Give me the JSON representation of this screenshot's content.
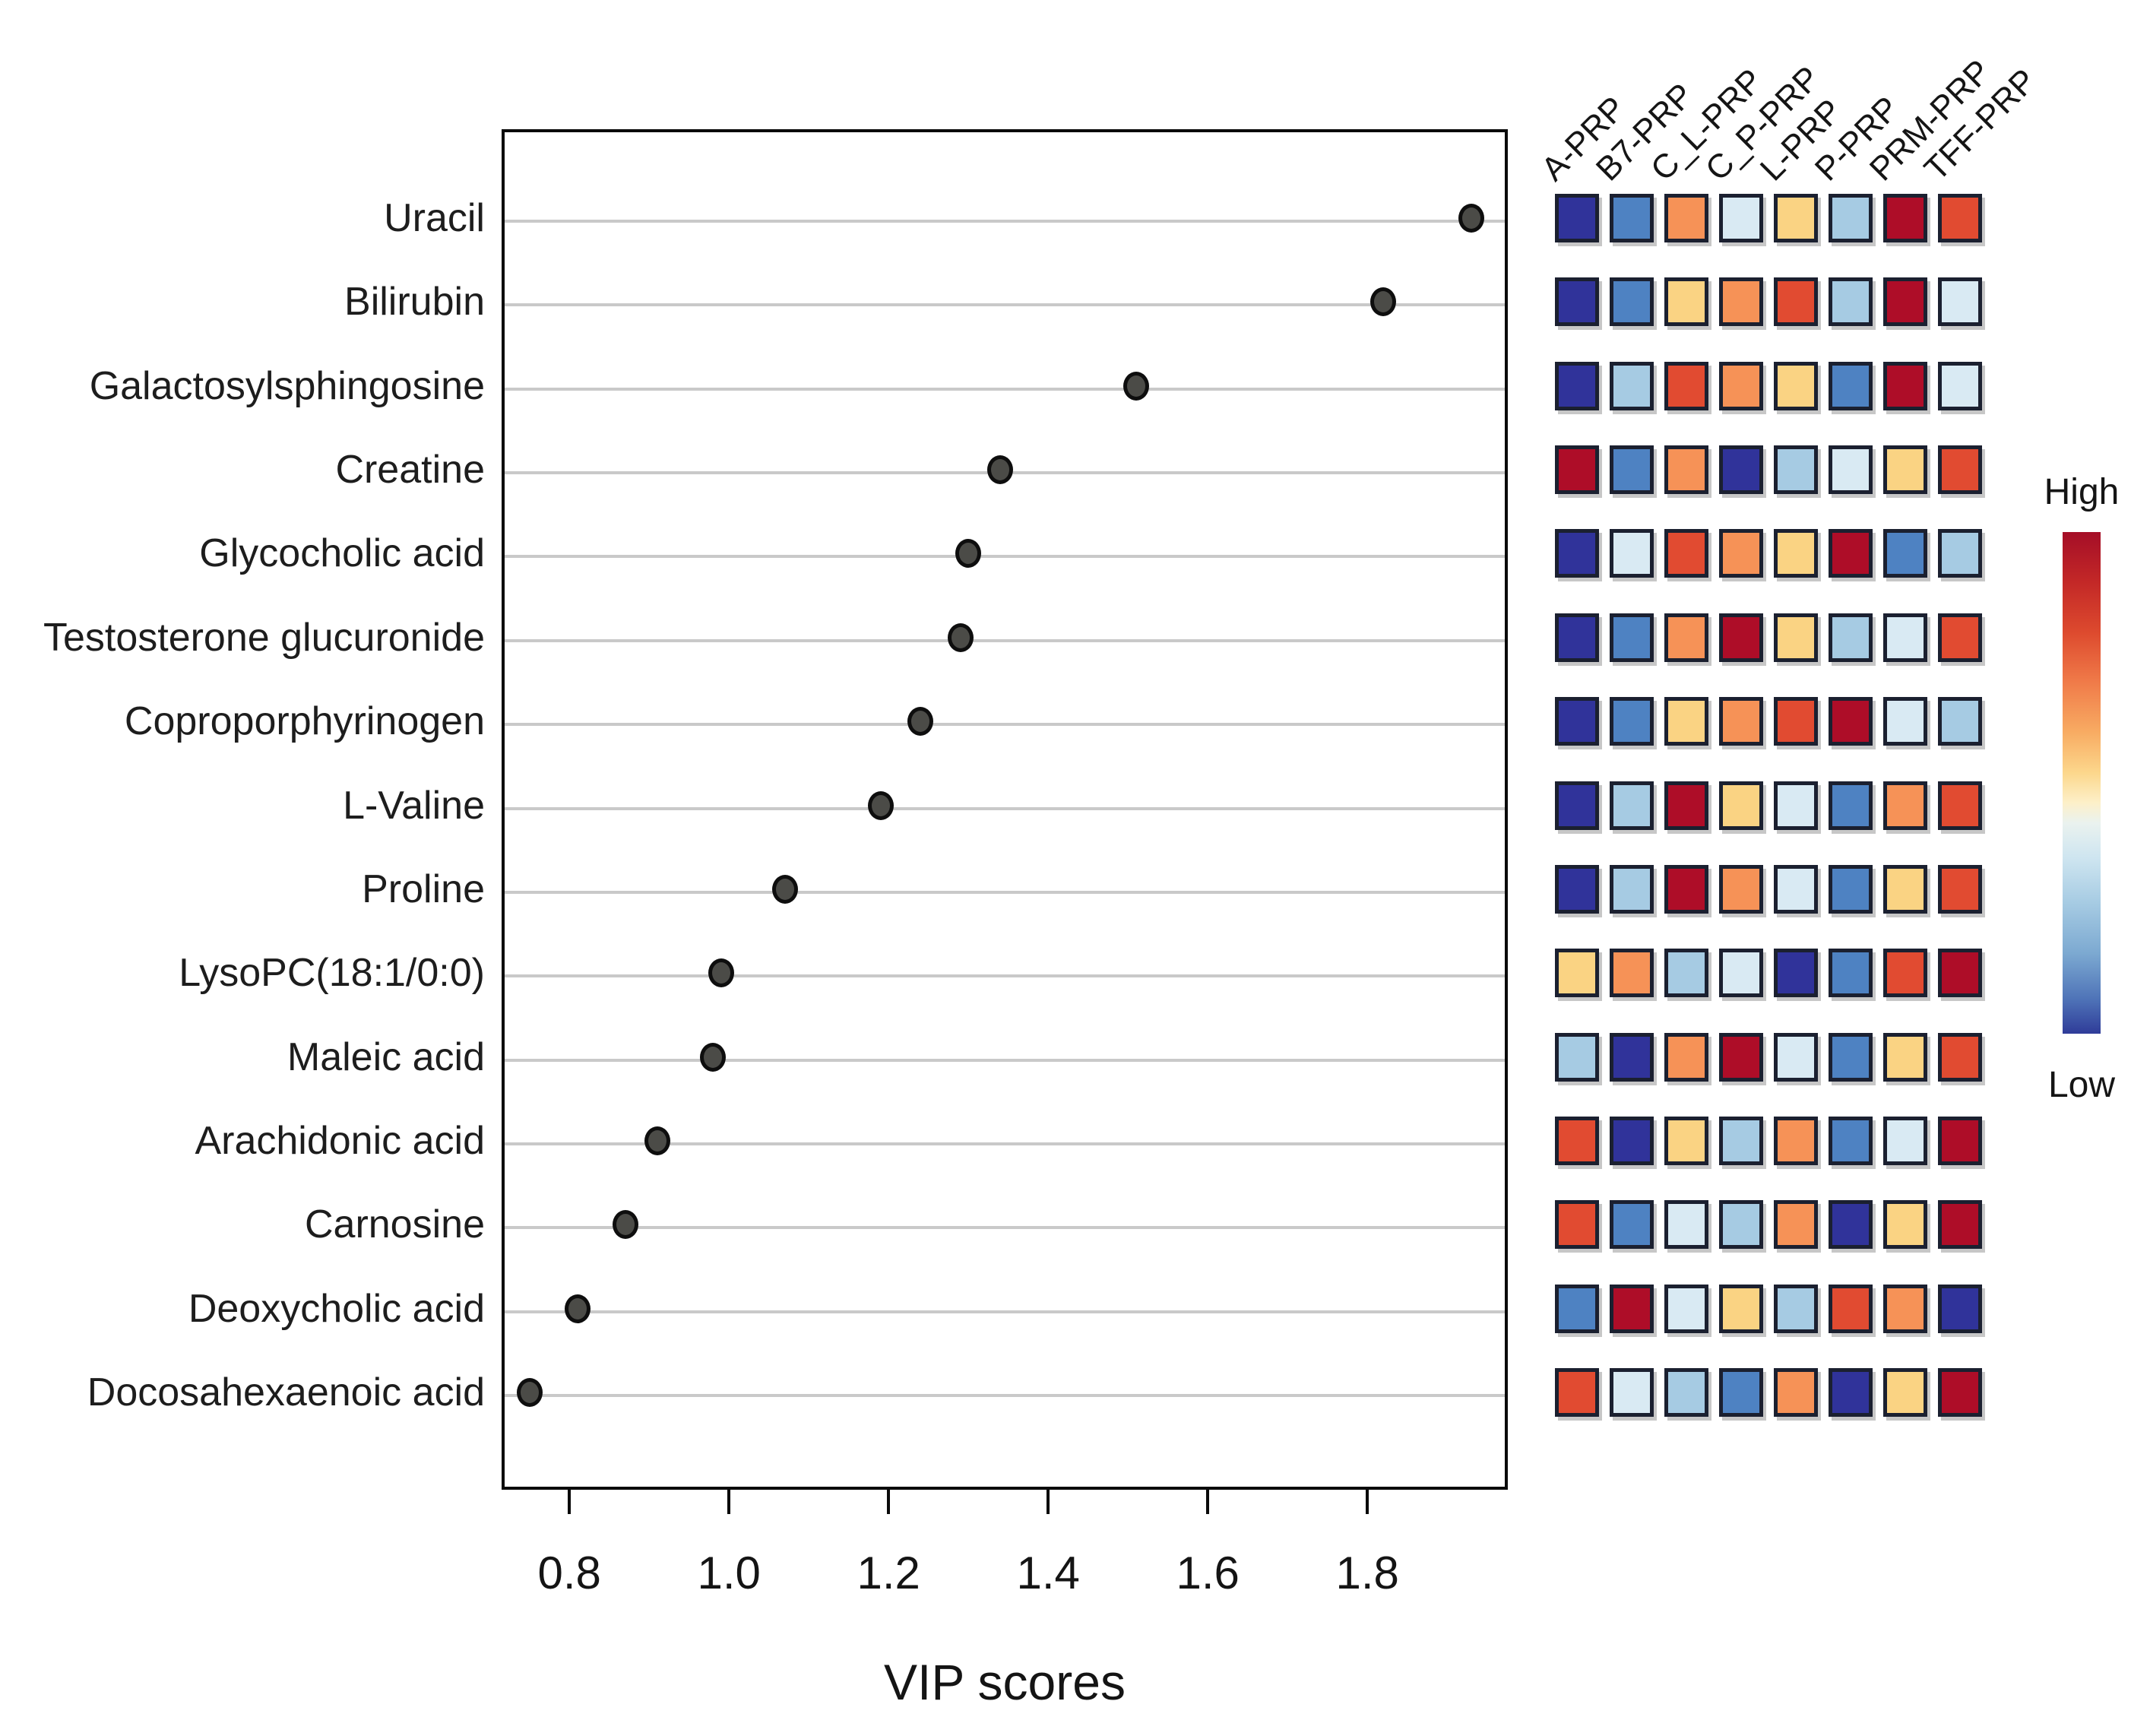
{
  "figure": {
    "x_axis_title": "VIP scores",
    "colors": {
      "dot_fill": "#4b4b47",
      "dot_border": "#0e0e0e",
      "grid_line": "#c9c9c9",
      "plot_border": "#0a0a0a",
      "cell_border": "#1b2030"
    }
  },
  "chart_data": [
    {
      "type": "scatter",
      "title": "",
      "xlabel": "VIP scores",
      "ylabel": "",
      "xlim": [
        0.715,
        1.976
      ],
      "xticks": [
        "0.8",
        "1.0",
        "1.2",
        "1.4",
        "1.6",
        "1.8"
      ],
      "grid": true,
      "legend_position": "none",
      "categories": [
        "Uracil",
        "Bilirubin",
        "Galactosylsphingosine",
        "Creatine",
        "Glycocholic acid",
        "Testosterone glucuronide",
        "Coproporphyrinogen",
        "L-Valine",
        "Proline",
        "LysoPC(18:1/0:0)",
        "Maleic acid",
        "Arachidonic acid",
        "Carnosine",
        "Deoxycholic acid",
        "Docosahexaenoic acid"
      ],
      "values": [
        1.93,
        1.82,
        1.51,
        1.34,
        1.3,
        1.29,
        1.24,
        1.19,
        1.07,
        0.99,
        0.98,
        0.91,
        0.87,
        0.81,
        0.75
      ]
    },
    {
      "type": "heatmap",
      "columns": [
        "A-PRP",
        "B7-PRP",
        "C_L-PRP",
        "C_P-PRP",
        "L-PRP",
        "P-PRP",
        "PRM-PRP",
        "TFF-PRP"
      ],
      "rows": [
        "Uracil",
        "Bilirubin",
        "Galactosylsphingosine",
        "Creatine",
        "Glycocholic acid",
        "Testosterone glucuronide",
        "Coproporphyrinogen",
        "L-Valine",
        "Proline",
        "LysoPC(18:1/0:0)",
        "Maleic acid",
        "Arachidonic acid",
        "Carnosine",
        "Deoxycholic acid",
        "Docosahexaenoic acid"
      ],
      "palette": {
        "darkblue": "#30339a",
        "medblue": "#4e82c2",
        "lightblue": "#a6cbe3",
        "paleblue": "#d9eaf3",
        "yellow": "#fad383",
        "orange": "#f69257",
        "redorange": "#e14b31",
        "darkred": "#ae0d28"
      },
      "cells": [
        [
          "darkblue",
          "medblue",
          "orange",
          "paleblue",
          "yellow",
          "lightblue",
          "darkred",
          "redorange"
        ],
        [
          "darkblue",
          "medblue",
          "yellow",
          "orange",
          "redorange",
          "lightblue",
          "darkred",
          "paleblue"
        ],
        [
          "darkblue",
          "lightblue",
          "redorange",
          "orange",
          "yellow",
          "medblue",
          "darkred",
          "paleblue"
        ],
        [
          "darkred",
          "medblue",
          "orange",
          "darkblue",
          "lightblue",
          "paleblue",
          "yellow",
          "redorange"
        ],
        [
          "darkblue",
          "paleblue",
          "redorange",
          "orange",
          "yellow",
          "darkred",
          "medblue",
          "lightblue"
        ],
        [
          "darkblue",
          "medblue",
          "orange",
          "darkred",
          "yellow",
          "lightblue",
          "paleblue",
          "redorange"
        ],
        [
          "darkblue",
          "medblue",
          "yellow",
          "orange",
          "redorange",
          "darkred",
          "paleblue",
          "lightblue"
        ],
        [
          "darkblue",
          "lightblue",
          "darkred",
          "yellow",
          "paleblue",
          "medblue",
          "orange",
          "redorange"
        ],
        [
          "darkblue",
          "lightblue",
          "darkred",
          "orange",
          "paleblue",
          "medblue",
          "yellow",
          "redorange"
        ],
        [
          "yellow",
          "orange",
          "lightblue",
          "paleblue",
          "darkblue",
          "medblue",
          "redorange",
          "darkred"
        ],
        [
          "lightblue",
          "darkblue",
          "orange",
          "darkred",
          "paleblue",
          "medblue",
          "yellow",
          "redorange"
        ],
        [
          "redorange",
          "darkblue",
          "yellow",
          "lightblue",
          "orange",
          "medblue",
          "paleblue",
          "darkred"
        ],
        [
          "redorange",
          "medblue",
          "paleblue",
          "lightblue",
          "orange",
          "darkblue",
          "yellow",
          "darkred"
        ],
        [
          "medblue",
          "darkred",
          "paleblue",
          "yellow",
          "lightblue",
          "redorange",
          "orange",
          "darkblue"
        ],
        [
          "redorange",
          "paleblue",
          "lightblue",
          "medblue",
          "orange",
          "darkblue",
          "yellow",
          "darkred"
        ]
      ],
      "legend": {
        "high": "High",
        "low": "Low"
      }
    }
  ]
}
